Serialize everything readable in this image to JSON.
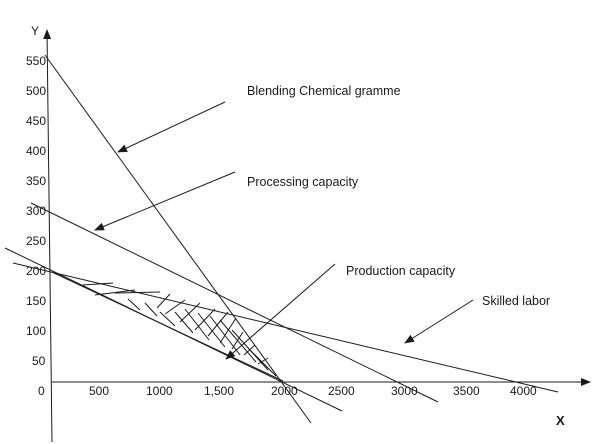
{
  "axes": {
    "y_label": "Y",
    "x_label": "X",
    "y_ticks": [
      "550",
      "500",
      "450",
      "400",
      "350",
      "300",
      "250",
      "200",
      "150",
      "100",
      "50",
      "0"
    ],
    "x_ticks": [
      "500",
      "1000",
      "1,500",
      "2000",
      "2500",
      "3000",
      "3500",
      "4000"
    ]
  },
  "annotations": {
    "blending": "Blending Chemical gramme",
    "processing": "Processing capacity",
    "production": "Production capacity",
    "skilled": "Skilled labor"
  },
  "colors": {
    "ink": "#1a1a1a",
    "background": "#ffffff"
  }
}
